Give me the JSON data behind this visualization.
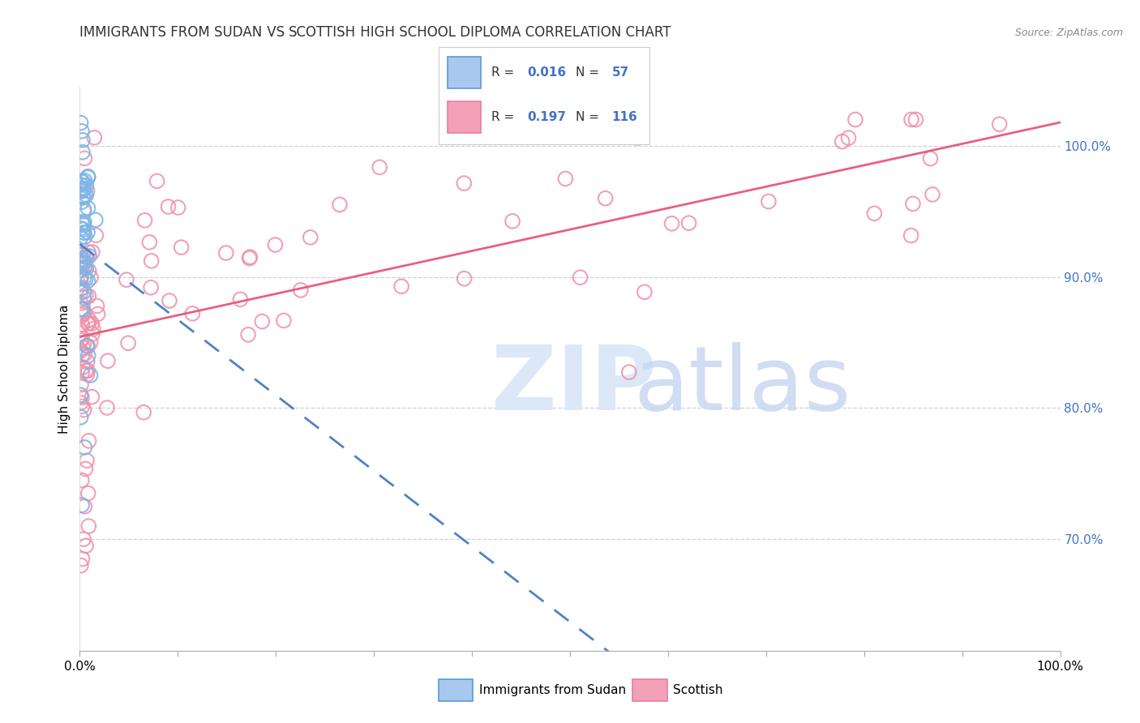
{
  "title_segments": [
    [
      "IMMIGRANTS FROM SUDAN",
      "#333333"
    ],
    [
      " VS ",
      "#333333"
    ],
    [
      "SCOTTISH",
      "#333333"
    ],
    [
      " HIGH SCHOOL DIPLOMA CORRELATION CHART",
      "#333333"
    ]
  ],
  "source_text": "Source: ZipAtlas.com",
  "ylabel": "High School Diploma",
  "ylabel_right_ticks": [
    "70.0%",
    "80.0%",
    "90.0%",
    "100.0%"
  ],
  "ylabel_right_vals": [
    0.7,
    0.8,
    0.9,
    1.0
  ],
  "xlim": [
    0.0,
    1.0
  ],
  "ylim": [
    0.615,
    1.045
  ],
  "background_color": "#ffffff",
  "grid_color": "#cccccc",
  "blue_color": "#7eb6e8",
  "pink_color": "#f090a8",
  "blue_line_color": "#5080c8",
  "pink_line_color": "#e86080",
  "blue_label": "Immigrants from Sudan",
  "pink_label": "Scottish",
  "R_blue": "0.016",
  "N_blue": "57",
  "R_pink": "0.197",
  "N_pink": "116",
  "watermark_zip": "ZIP",
  "watermark_atlas": "atlas",
  "legend_R_color": "#4472c4",
  "legend_N_color": "#4472c4"
}
